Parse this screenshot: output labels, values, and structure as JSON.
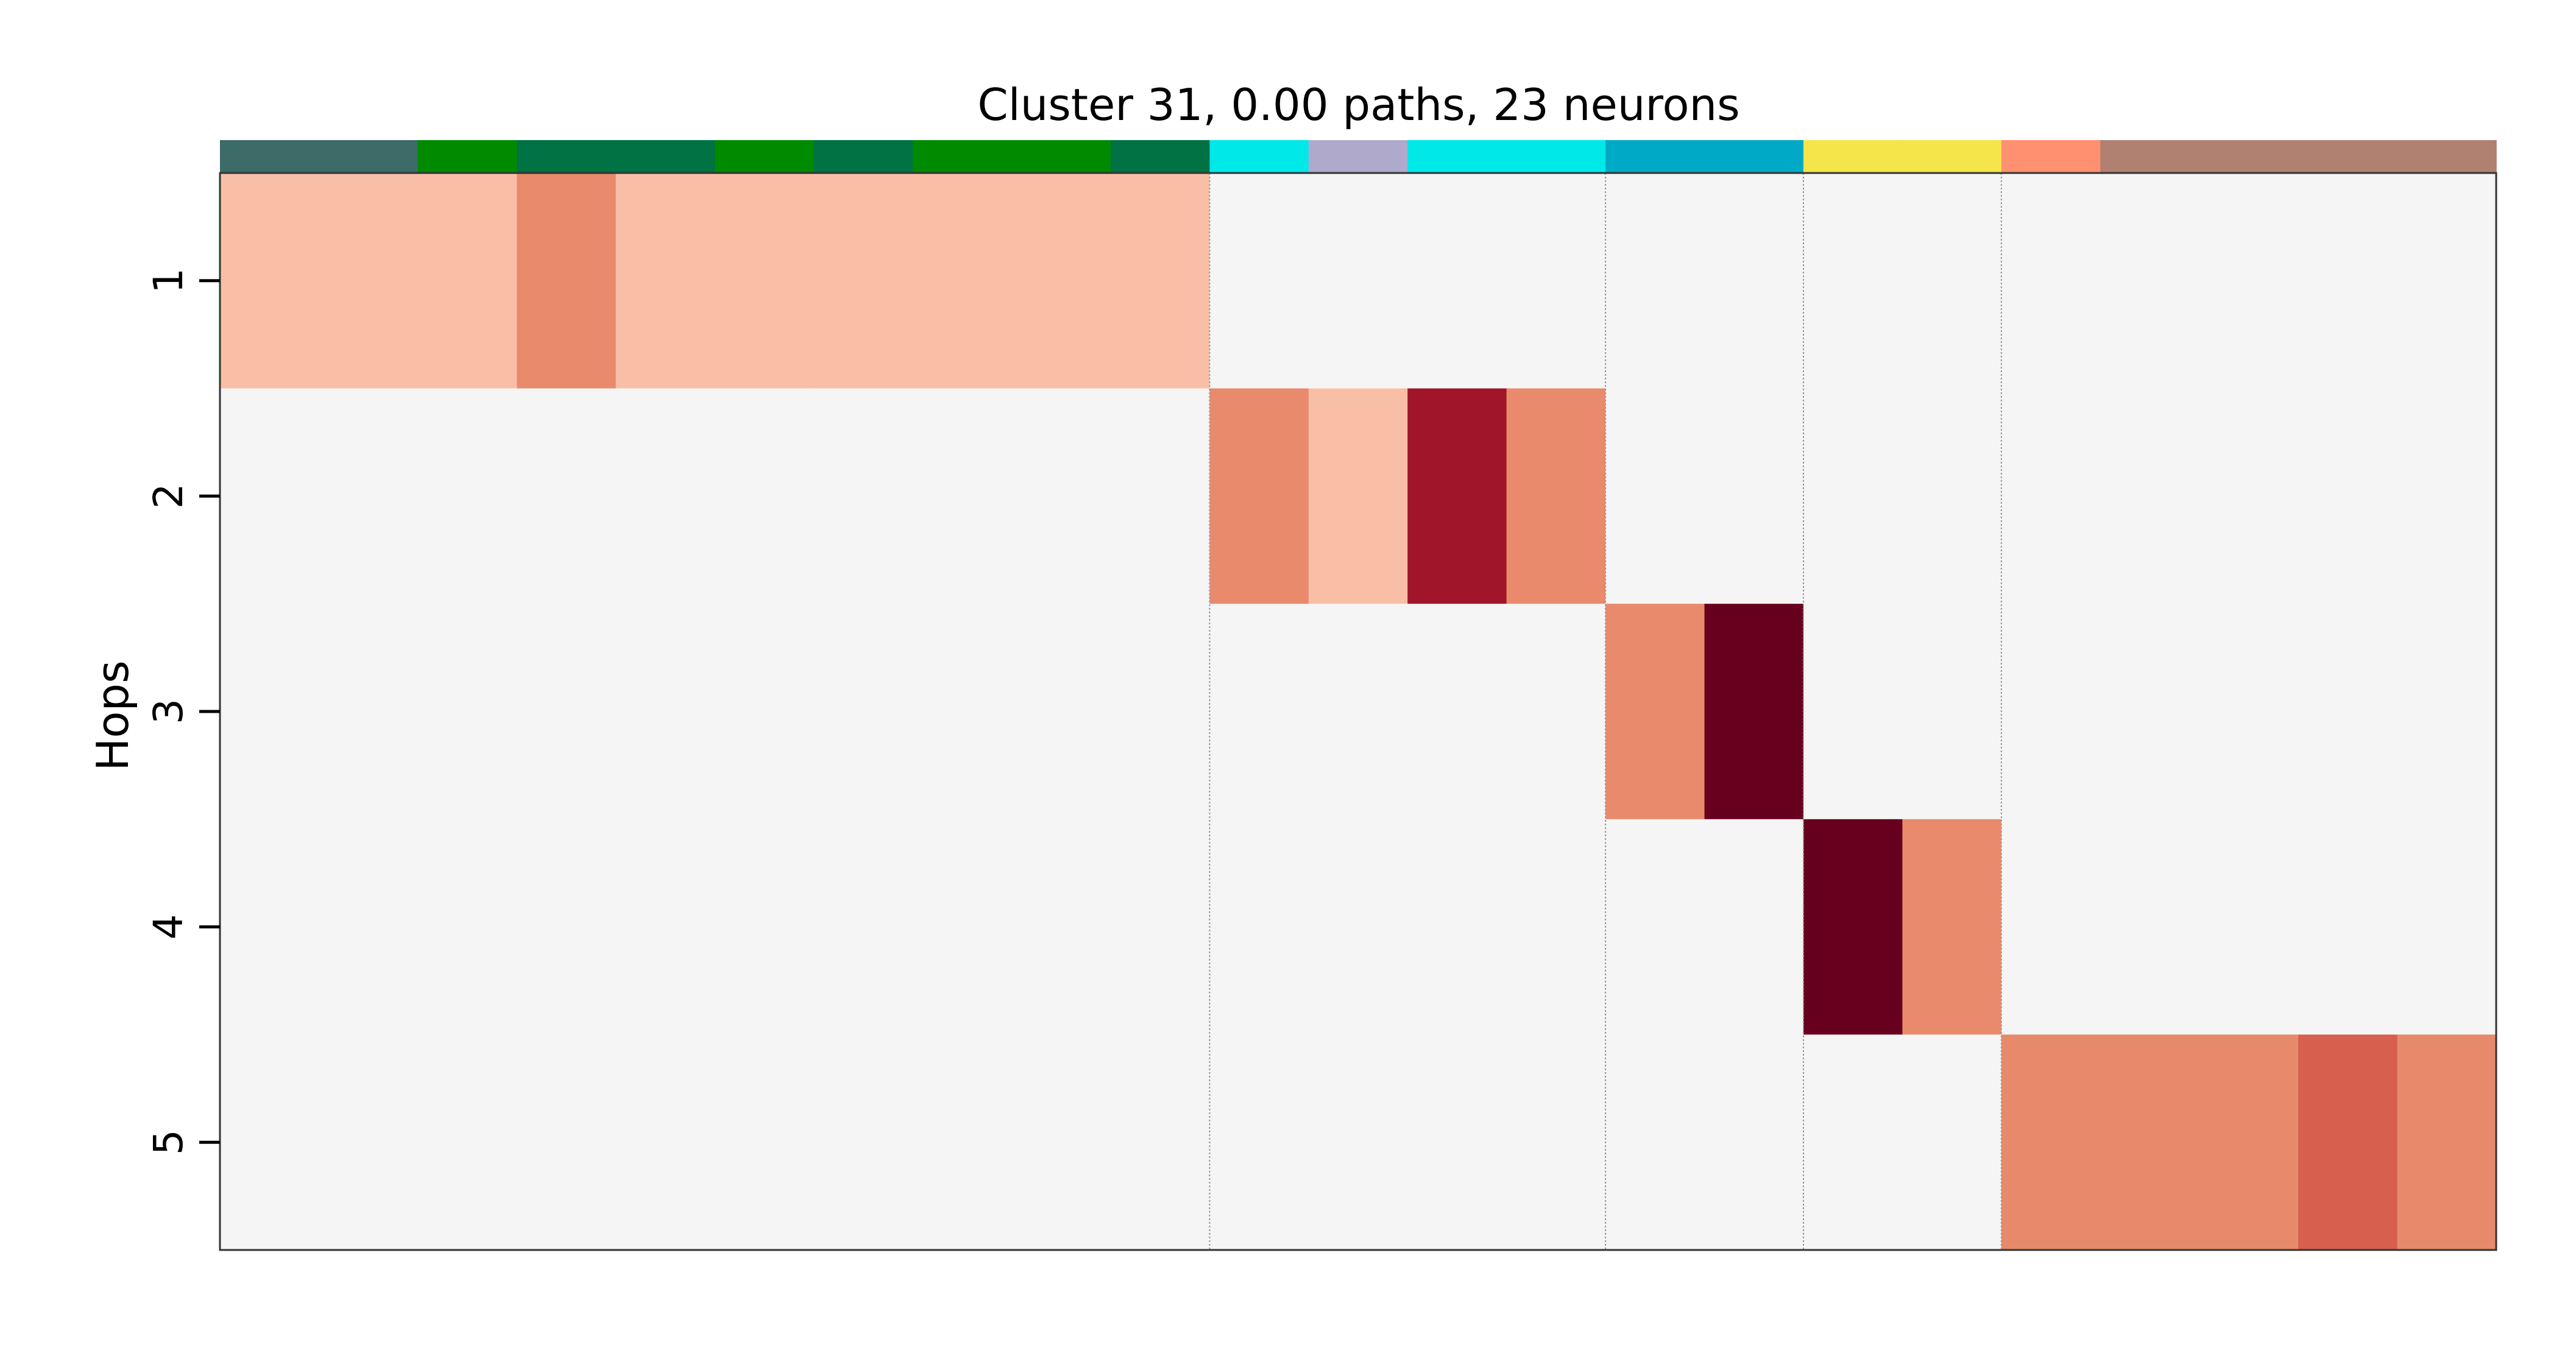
{
  "chart_data": {
    "type": "heatmap",
    "title": "Cluster 31, 0.00 paths, 23 neurons",
    "xlabel": "",
    "ylabel": "Hops",
    "yticks": [
      "1",
      "2",
      "3",
      "4",
      "5"
    ],
    "num_columns": 23,
    "group_boundaries": [
      10,
      14,
      16,
      18
    ],
    "empty_color": "#f5f5f5",
    "palette": {
      "L": "#f9bfa6",
      "M": "#e98a6d",
      "M2": "#e68a6b",
      "R": "#d65f4e",
      "D": "#a01529",
      "K": "#67001f"
    },
    "column_colors": [
      "#3c6b68",
      "#3c6b68",
      "#008a00",
      "#007243",
      "#007243",
      "#008a00",
      "#007243",
      "#008a00",
      "#008a00",
      "#007243",
      "#00e8e8",
      "#afaacc",
      "#00e8e8",
      "#00e8e8",
      "#00aac6",
      "#00aac6",
      "#f5e54b",
      "#f5e54b",
      "#ff9070",
      "#b08070",
      "#b08070",
      "#b08070",
      "#b08070"
    ],
    "cells": [
      [
        "L",
        "L",
        "L",
        "M",
        "L",
        "L",
        "L",
        "L",
        "L",
        "L",
        "",
        "",
        "",
        "",
        "",
        "",
        "",
        "",
        "",
        "",
        "",
        "",
        ""
      ],
      [
        "",
        "",
        "",
        "",
        "",
        "",
        "",
        "",
        "",
        "",
        "M",
        "L",
        "D",
        "M",
        "",
        "",
        "",
        "",
        "",
        "",
        "",
        "",
        ""
      ],
      [
        "",
        "",
        "",
        "",
        "",
        "",
        "",
        "",
        "",
        "",
        "",
        "",
        "",
        "",
        "M",
        "K",
        "",
        "",
        "",
        "",
        "",
        "",
        ""
      ],
      [
        "",
        "",
        "",
        "",
        "",
        "",
        "",
        "",
        "",
        "",
        "",
        "",
        "",
        "",
        "",
        "",
        "K",
        "M",
        "",
        "",
        "",
        "",
        ""
      ],
      [
        "",
        "",
        "",
        "",
        "",
        "",
        "",
        "",
        "",
        "",
        "",
        "",
        "",
        "",
        "",
        "",
        "",
        "",
        "M2",
        "M2",
        "M2",
        "R",
        "M2"
      ]
    ]
  }
}
